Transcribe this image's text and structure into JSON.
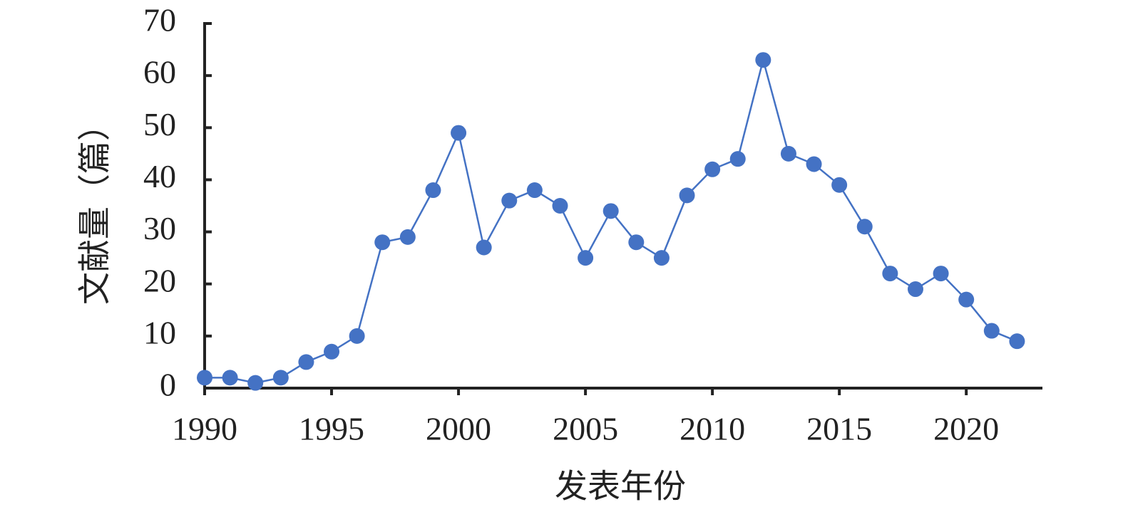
{
  "chart_data": {
    "type": "line",
    "x": [
      1990,
      1991,
      1992,
      1993,
      1994,
      1995,
      1996,
      1997,
      1998,
      1999,
      2000,
      2001,
      2002,
      2003,
      2004,
      2005,
      2006,
      2007,
      2008,
      2009,
      2010,
      2011,
      2012,
      2013,
      2014,
      2015,
      2016,
      2017,
      2018,
      2019,
      2020,
      2021,
      2022
    ],
    "series": [
      {
        "color": "#4472c4",
        "values": [
          2,
          2,
          1,
          2,
          5,
          7,
          10,
          28,
          29,
          38,
          49,
          27,
          36,
          38,
          35,
          25,
          34,
          28,
          25,
          37,
          42,
          44,
          63,
          45,
          43,
          39,
          31,
          22,
          19,
          22,
          17,
          11,
          9
        ]
      }
    ],
    "xlabel": "发表年份",
    "ylabel": "文献量（篇）",
    "xlim": [
      1990,
      2023
    ],
    "xticks": [
      1990,
      1995,
      2000,
      2005,
      2010,
      2015,
      2020
    ],
    "ylim": [
      0,
      70
    ],
    "yticks": [
      0,
      10,
      20,
      30,
      40,
      50,
      60,
      70
    ]
  }
}
